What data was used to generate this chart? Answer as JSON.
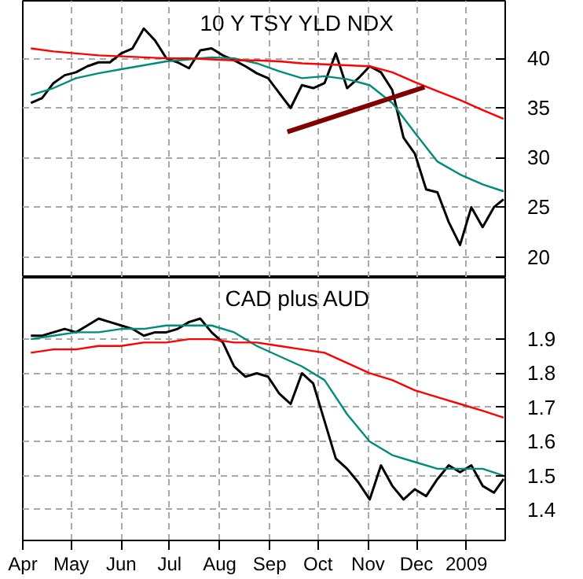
{
  "chart_data": [
    {
      "type": "line",
      "title": "10 Y TSY YLD NDX",
      "x": [
        "2008-04-06",
        "2008-04-13",
        "2008-04-20",
        "2008-04-27",
        "2008-05-04",
        "2008-05-11",
        "2008-05-18",
        "2008-05-25",
        "2008-06-01",
        "2008-06-08",
        "2008-06-15",
        "2008-06-22",
        "2008-06-29",
        "2008-07-06",
        "2008-07-13",
        "2008-07-20",
        "2008-07-27",
        "2008-08-03",
        "2008-08-10",
        "2008-08-17",
        "2008-08-24",
        "2008-08-31",
        "2008-09-07",
        "2008-09-14",
        "2008-09-21",
        "2008-09-28",
        "2008-10-05",
        "2008-10-12",
        "2008-10-19",
        "2008-10-26",
        "2008-11-02",
        "2008-11-09",
        "2008-11-16",
        "2008-11-23",
        "2008-11-30",
        "2008-12-07",
        "2008-12-14",
        "2008-12-21",
        "2008-12-28",
        "2009-01-04",
        "2009-01-11",
        "2009-01-18",
        "2009-01-24"
      ],
      "series": [
        {
          "color": "#000000",
          "values": [
            35.5,
            36.0,
            37.5,
            38.3,
            38.6,
            39.2,
            39.6,
            39.6,
            40.5,
            41.0,
            43.0,
            41.8,
            40.0,
            39.6,
            39.0,
            40.8,
            41.0,
            40.3,
            39.8,
            39.2,
            38.5,
            38.0,
            36.5,
            35.0,
            37.3,
            37.0,
            37.5,
            40.5,
            37.0,
            38.0,
            39.2,
            38.6,
            36.8,
            32.0,
            30.4,
            26.8,
            26.5,
            23.5,
            21.2,
            25.0,
            23.0,
            25.0,
            25.8
          ]
        },
        {
          "color": "#008c7a",
          "x": [
            "2008-04-06",
            "2008-04-20",
            "2008-05-04",
            "2008-05-18",
            "2008-06-01",
            "2008-06-15",
            "2008-06-29",
            "2008-07-13",
            "2008-07-27",
            "2008-08-10",
            "2008-08-24",
            "2008-09-07",
            "2008-09-21",
            "2008-10-05",
            "2008-10-19",
            "2008-11-02",
            "2008-11-16",
            "2008-11-30",
            "2008-12-14",
            "2008-12-28",
            "2009-01-11",
            "2009-01-24"
          ],
          "values": [
            36.3,
            37.0,
            38.0,
            38.5,
            38.9,
            39.3,
            39.7,
            39.9,
            40.1,
            40.0,
            39.5,
            38.7,
            38.0,
            38.2,
            37.9,
            37.3,
            35.5,
            32.5,
            29.6,
            28.3,
            27.3,
            26.6
          ]
        },
        {
          "color": "#ff0000",
          "x": [
            "2008-04-06",
            "2008-04-20",
            "2008-05-04",
            "2008-05-18",
            "2008-06-01",
            "2008-06-15",
            "2008-06-29",
            "2008-07-13",
            "2008-07-27",
            "2008-08-10",
            "2008-08-24",
            "2008-09-07",
            "2008-09-21",
            "2008-10-05",
            "2008-10-19",
            "2008-11-02",
            "2008-11-16",
            "2008-11-30",
            "2008-12-14",
            "2008-12-28",
            "2009-01-11",
            "2009-01-24"
          ],
          "values": [
            41.0,
            40.7,
            40.5,
            40.3,
            40.2,
            40.1,
            40.0,
            40.0,
            39.9,
            39.8,
            39.8,
            39.7,
            39.5,
            39.4,
            39.3,
            39.2,
            38.6,
            37.6,
            36.7,
            35.8,
            34.8,
            33.9
          ]
        },
        {
          "color": "#800000",
          "x": [
            "2008-09-12",
            "2008-12-06"
          ],
          "values": [
            32.6,
            37.1
          ]
        }
      ],
      "xlim": [
        "2008-04-01",
        "2009-01-25"
      ],
      "xticks": [
        {
          "value": "2008-04-01",
          "label": null
        },
        {
          "value": "2008-05-01",
          "label": null
        },
        {
          "value": "2008-06-01",
          "label": null
        },
        {
          "value": "2008-07-01",
          "label": null
        },
        {
          "value": "2008-08-01",
          "label": null
        },
        {
          "value": "2008-09-01",
          "label": null
        },
        {
          "value": "2008-10-01",
          "label": null
        },
        {
          "value": "2008-11-01",
          "label": null
        },
        {
          "value": "2008-12-01",
          "label": null
        },
        {
          "value": "2009-01-01",
          "label": null
        }
      ],
      "ylim": [
        17.9,
        45.8
      ],
      "yticks": [
        20,
        25,
        30,
        35,
        40
      ],
      "grid": true,
      "tick_labels": "y"
    },
    {
      "type": "line",
      "title": "CAD plus AUD",
      "x": [
        "2008-04-06",
        "2008-04-13",
        "2008-04-20",
        "2008-04-27",
        "2008-05-04",
        "2008-05-11",
        "2008-05-18",
        "2008-05-25",
        "2008-06-01",
        "2008-06-08",
        "2008-06-15",
        "2008-06-22",
        "2008-06-29",
        "2008-07-06",
        "2008-07-13",
        "2008-07-20",
        "2008-07-27",
        "2008-08-03",
        "2008-08-10",
        "2008-08-17",
        "2008-08-24",
        "2008-08-31",
        "2008-09-07",
        "2008-09-14",
        "2008-09-21",
        "2008-09-28",
        "2008-10-05",
        "2008-10-12",
        "2008-10-19",
        "2008-10-26",
        "2008-11-02",
        "2008-11-09",
        "2008-11-16",
        "2008-11-23",
        "2008-11-30",
        "2008-12-07",
        "2008-12-14",
        "2008-12-21",
        "2008-12-28",
        "2009-01-04",
        "2009-01-11",
        "2009-01-18",
        "2009-01-24"
      ],
      "series": [
        {
          "color": "#000000",
          "values": [
            1.91,
            1.91,
            1.92,
            1.93,
            1.92,
            1.94,
            1.96,
            1.95,
            1.94,
            1.93,
            1.91,
            1.92,
            1.92,
            1.93,
            1.95,
            1.96,
            1.92,
            1.89,
            1.82,
            1.79,
            1.8,
            1.79,
            1.74,
            1.71,
            1.8,
            1.77,
            1.66,
            1.55,
            1.52,
            1.48,
            1.43,
            1.53,
            1.47,
            1.43,
            1.46,
            1.44,
            1.49,
            1.53,
            1.51,
            1.53,
            1.47,
            1.45,
            1.49
          ]
        },
        {
          "color": "#008c7a",
          "x": [
            "2008-04-06",
            "2008-04-20",
            "2008-05-04",
            "2008-05-18",
            "2008-06-01",
            "2008-06-15",
            "2008-06-29",
            "2008-07-13",
            "2008-07-27",
            "2008-08-10",
            "2008-08-24",
            "2008-09-07",
            "2008-09-21",
            "2008-10-05",
            "2008-10-19",
            "2008-11-02",
            "2008-11-16",
            "2008-11-30",
            "2008-12-14",
            "2008-12-28",
            "2009-01-11",
            "2009-01-24"
          ],
          "values": [
            1.9,
            1.91,
            1.92,
            1.92,
            1.93,
            1.93,
            1.94,
            1.94,
            1.94,
            1.92,
            1.88,
            1.85,
            1.82,
            1.78,
            1.68,
            1.6,
            1.56,
            1.54,
            1.52,
            1.52,
            1.52,
            1.5
          ]
        },
        {
          "color": "#ff0000",
          "x": [
            "2008-04-06",
            "2008-04-20",
            "2008-05-04",
            "2008-05-18",
            "2008-06-01",
            "2008-06-15",
            "2008-06-29",
            "2008-07-13",
            "2008-07-27",
            "2008-08-10",
            "2008-08-24",
            "2008-09-07",
            "2008-09-21",
            "2008-10-05",
            "2008-10-19",
            "2008-11-02",
            "2008-11-16",
            "2008-11-30",
            "2008-12-14",
            "2008-12-28",
            "2009-01-11",
            "2009-01-24"
          ],
          "values": [
            1.86,
            1.87,
            1.87,
            1.88,
            1.88,
            1.89,
            1.89,
            1.9,
            1.9,
            1.89,
            1.89,
            1.88,
            1.87,
            1.86,
            1.83,
            1.8,
            1.78,
            1.75,
            1.73,
            1.71,
            1.69,
            1.67
          ]
        }
      ],
      "xlim": [
        "2008-04-01",
        "2009-01-25"
      ],
      "xticks": [
        {
          "value": "2008-04-01",
          "label": "Apr"
        },
        {
          "value": "2008-05-01",
          "label": "May"
        },
        {
          "value": "2008-06-01",
          "label": "Jun"
        },
        {
          "value": "2008-07-01",
          "label": "Jul"
        },
        {
          "value": "2008-08-01",
          "label": "Aug"
        },
        {
          "value": "2008-09-01",
          "label": "Sep"
        },
        {
          "value": "2008-10-01",
          "label": "Oct"
        },
        {
          "value": "2008-11-01",
          "label": "Nov"
        },
        {
          "value": "2008-12-01",
          "label": "Dec"
        },
        {
          "value": "2009-01-01",
          "label": "2009"
        }
      ],
      "ylim": [
        1.31,
        2.08
      ],
      "yticks": [
        1.4,
        1.5,
        1.6,
        1.7,
        1.8,
        1.9
      ],
      "grid": true
    }
  ]
}
